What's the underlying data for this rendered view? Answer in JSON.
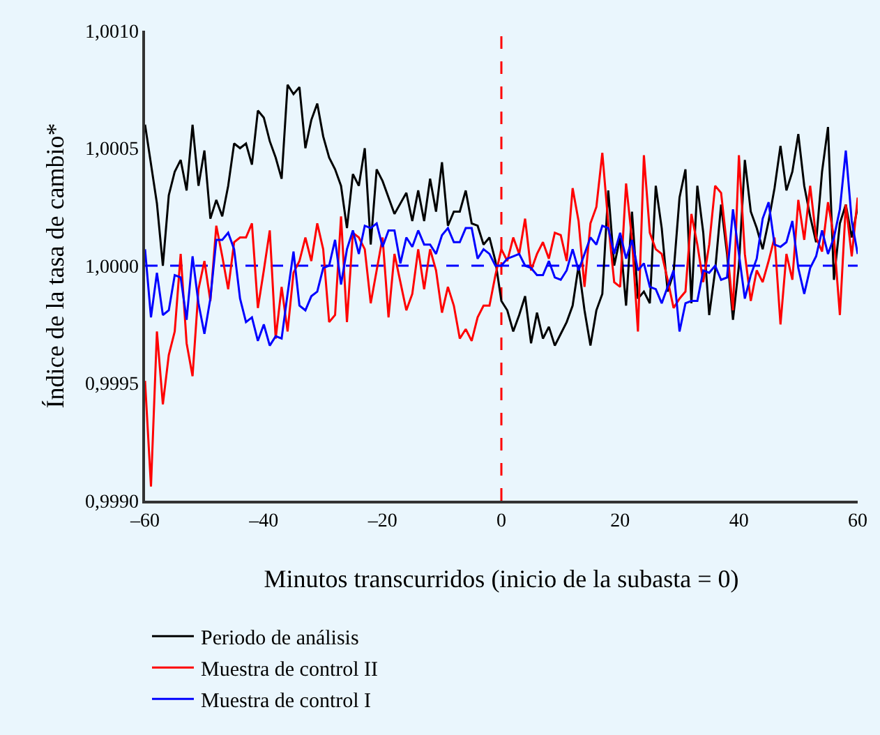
{
  "chart_data": {
    "type": "line",
    "xlabel": "Minutos transcurridos (inicio de la subasta = 0)",
    "ylabel": "Índice de la tasa de cambio*",
    "xlim": [
      -60,
      60
    ],
    "xticks": [
      {
        "value": -60,
        "label": "–60"
      },
      {
        "value": -40,
        "label": "–40"
      },
      {
        "value": -20,
        "label": "–20"
      },
      0,
      20,
      40,
      60
    ],
    "ylim": [
      0.999,
      1.001
    ],
    "yticks": [
      {
        "value": 0.999,
        "label": "0,9990"
      },
      {
        "value": 0.9995,
        "label": "0,9995"
      },
      {
        "value": 1.0,
        "label": "1,0000"
      },
      {
        "value": 1.0005,
        "label": "1,0005"
      },
      {
        "value": 1.001,
        "label": "1,0010"
      }
    ],
    "grid": false,
    "legend": "bottom",
    "marker": "none",
    "line_style": "solid",
    "ref_lines": [
      {
        "axis": "x",
        "value": 0,
        "color": "#ff0000",
        "line_style": "dashed"
      },
      {
        "axis": "y",
        "value": 1.0,
        "color": "#0000ff",
        "line_style": "dashed"
      }
    ],
    "series": [
      {
        "name": "Periodo de análisis",
        "color": "#000000",
        "x": [
          -60,
          -58,
          -57,
          -56,
          -55,
          -54,
          -53,
          -52,
          -51,
          -50,
          -49,
          -48,
          -47,
          -46,
          -45,
          -44,
          -43,
          -42,
          -41,
          -40,
          -39,
          -38,
          -37,
          -36,
          -35,
          -34,
          -33,
          -32,
          -31,
          -30,
          -29,
          -28,
          -27,
          -26,
          -25,
          -24,
          -23,
          -22,
          -21,
          -20,
          -18,
          -16,
          -15,
          -14,
          -13,
          -12,
          -11,
          -10,
          -9,
          -8,
          -7,
          -6,
          -5,
          -4,
          -3,
          -2,
          -1,
          0,
          1,
          2,
          3,
          4,
          5,
          6,
          7,
          8,
          9,
          10,
          11,
          12,
          13,
          14,
          15,
          16,
          17,
          18,
          19,
          20,
          21,
          22,
          23,
          24,
          25,
          26,
          27,
          28,
          29,
          30,
          31,
          32,
          33,
          34,
          35,
          36,
          37,
          38,
          39,
          40,
          41,
          42,
          43,
          44,
          45,
          46,
          47,
          48,
          49,
          50,
          51,
          52,
          53,
          54,
          55,
          56,
          57,
          58,
          59,
          60
        ],
        "values": [
          1.0006,
          1.000265,
          1.0,
          1.0003,
          1.0004,
          1.00045,
          1.00032,
          1.0006,
          1.00034,
          1.00049,
          1.0002,
          1.00028,
          1.00021,
          1.00034,
          1.00052,
          1.0005,
          1.00052,
          1.00043,
          1.00066,
          1.00063,
          1.00053,
          1.00046,
          1.00037,
          1.00077,
          1.00073,
          1.00076,
          1.0005,
          1.00062,
          1.00069,
          1.00055,
          1.00046,
          1.00041,
          1.00034,
          1.00016,
          1.00039,
          1.00034,
          1.0005,
          1.00009,
          1.00041,
          1.00036,
          1.00022,
          1.00031,
          1.00019,
          1.00032,
          1.00019,
          1.00037,
          1.00023,
          1.00044,
          1.00017,
          1.00023,
          1.00023,
          1.00032,
          1.00018,
          1.00017,
          1.00009,
          1.00012,
          1.00002,
          0.99985,
          0.99981,
          0.99972,
          0.99979,
          0.99987,
          0.99967,
          0.9998,
          0.99969,
          0.99974,
          0.99966,
          0.99971,
          0.99976,
          0.99983,
          1.0,
          0.99981,
          0.99966,
          0.99981,
          0.99988,
          1.00032,
          1.0,
          1.00012,
          0.99983,
          1.00023,
          0.99986,
          0.99989,
          0.99984,
          1.00034,
          1.00016,
          0.99989,
          0.99997,
          1.00029,
          1.00041,
          0.99984,
          1.00034,
          1.00014,
          0.99979,
          0.99998,
          1.00026,
          1.00005,
          0.99977,
          1.0,
          1.00045,
          1.00023,
          1.00016,
          1.00007,
          1.00019,
          1.00033,
          1.00051,
          1.00032,
          1.0004,
          1.00056,
          1.00034,
          1.00021,
          1.0001,
          1.0004,
          1.00059,
          0.99994,
          1.00018,
          1.00026,
          1.00012,
          1.00025
        ]
      },
      {
        "name": "Muestra de control II",
        "color": "#ff0000",
        "x": [
          -60,
          -59,
          -58,
          -57,
          -56,
          -55,
          -54,
          -53,
          -52,
          -51,
          -50,
          -49,
          -48,
          -47,
          -46,
          -45,
          -44,
          -43,
          -42,
          -41,
          -40,
          -39,
          -38,
          -37,
          -36,
          -35,
          -34,
          -33,
          -32,
          -31,
          -30,
          -29,
          -28,
          -27,
          -26,
          -25,
          -24,
          -23,
          -22,
          -21,
          -20,
          -19,
          -18,
          -17,
          -16,
          -15,
          -14,
          -13,
          -12,
          -11,
          -10,
          -9,
          -8,
          -7,
          -6,
          -5,
          -4,
          -3,
          -2,
          -1,
          0,
          1,
          2,
          3,
          4,
          5,
          6,
          7,
          8,
          9,
          10,
          11,
          12,
          13,
          14,
          15,
          16,
          17,
          18,
          19,
          20,
          21,
          22,
          23,
          24,
          25,
          26,
          27,
          28,
          29,
          30,
          31,
          32,
          33,
          34,
          35,
          36,
          37,
          38,
          39,
          40,
          41,
          42,
          43,
          44,
          45,
          46,
          47,
          48,
          49,
          50,
          51,
          52,
          53,
          54,
          55,
          56,
          57,
          58,
          59,
          60
        ],
        "values": [
          0.99951,
          0.99906,
          0.99972,
          0.99941,
          0.99962,
          0.99972,
          1.00005,
          0.99967,
          0.99953,
          0.9999,
          1.00002,
          0.99985,
          1.00017,
          1.00004,
          0.9999,
          1.0001,
          1.00012,
          1.00012,
          1.00018,
          0.99982,
          0.99998,
          1.00015,
          0.99969,
          0.99991,
          0.99972,
          0.99997,
          1.00002,
          1.00012,
          1.00002,
          1.00018,
          1.00007,
          0.99976,
          0.99979,
          1.00021,
          0.99976,
          1.00014,
          1.00012,
          1.00007,
          0.99984,
          0.99998,
          1.00012,
          0.99978,
          1.00005,
          0.99993,
          0.99981,
          0.99988,
          1.00007,
          0.9999,
          1.00007,
          0.99998,
          0.9998,
          0.99991,
          0.99983,
          0.99969,
          0.99973,
          0.99968,
          0.99978,
          0.99983,
          0.99983,
          0.99996,
          1.00007,
          1.00002,
          1.00012,
          1.00005,
          1.0002,
          0.99998,
          1.00005,
          1.0001,
          1.00003,
          1.00014,
          1.00013,
          1.00002,
          1.00033,
          1.00019,
          0.99991,
          1.00018,
          1.00025,
          1.00048,
          1.00018,
          0.99993,
          0.99991,
          1.00035,
          1.00011,
          0.99972,
          1.00047,
          1.00014,
          1.00007,
          1.00005,
          0.99994,
          0.99982,
          0.99986,
          0.99989,
          1.00022,
          1.00009,
          0.99993,
          1.00009,
          1.00034,
          1.00031,
          1.00008,
          0.99981,
          1.00047,
          1.00005,
          0.99985,
          0.99998,
          0.99993,
          1.00002,
          1.00012,
          0.99975,
          1.00005,
          0.99994,
          1.00028,
          1.00011,
          1.00034,
          1.00012,
          1.00006,
          1.00027,
          1.00012,
          0.99979,
          1.00026,
          1.00004,
          1.00029
        ]
      },
      {
        "name": "Muestra de control I",
        "color": "#0000ff",
        "x": [
          -60,
          -59,
          -58,
          -57,
          -56,
          -55,
          -54,
          -53,
          -52,
          -51,
          -50,
          -49,
          -48,
          -47,
          -46,
          -45,
          -44,
          -43,
          -42,
          -41,
          -40,
          -39,
          -38,
          -37,
          -36,
          -35,
          -34,
          -33,
          -32,
          -31,
          -30,
          -29,
          -28,
          -27,
          -26,
          -25,
          -24,
          -23,
          -22,
          -21,
          -20,
          -19,
          -18,
          -17,
          -16,
          -15,
          -14,
          -13,
          -12,
          -11,
          -10,
          -9,
          -8,
          -7,
          -6,
          -5,
          -4,
          -3,
          -2,
          -1,
          0,
          1,
          2,
          3,
          4,
          5,
          6,
          7,
          8,
          9,
          10,
          11,
          12,
          13,
          14,
          15,
          16,
          17,
          18,
          19,
          20,
          21,
          22,
          23,
          24,
          25,
          26,
          27,
          28,
          29,
          30,
          31,
          32,
          33,
          34,
          35,
          36,
          37,
          38,
          39,
          40,
          41,
          42,
          43,
          44,
          45,
          46,
          47,
          48,
          49,
          50,
          51,
          52,
          53,
          54,
          55,
          56,
          57,
          58,
          59,
          60
        ],
        "values": [
          1.00007,
          0.99978,
          0.99997,
          0.99979,
          0.99981,
          0.99996,
          0.99995,
          0.99977,
          1.00004,
          0.99984,
          0.99971,
          0.99986,
          1.00011,
          1.00011,
          1.00014,
          1.00007,
          0.99986,
          0.99976,
          0.99978,
          0.99968,
          0.99975,
          0.99966,
          0.9997,
          0.99969,
          0.99988,
          1.00006,
          0.99983,
          0.99981,
          0.99987,
          0.99989,
          0.99999,
          1.0,
          1.00011,
          0.99992,
          1.00007,
          1.00015,
          1.00005,
          1.00017,
          1.00016,
          1.00018,
          1.00008,
          1.00015,
          1.00015,
          1.00001,
          1.00012,
          1.00008,
          1.00015,
          1.00009,
          1.00009,
          1.00005,
          1.00013,
          1.00016,
          1.0001,
          1.0001,
          1.00016,
          1.00016,
          1.00003,
          1.00007,
          1.00005,
          1.0,
          1.0,
          1.00003,
          1.00004,
          1.00005,
          1.0,
          0.99999,
          0.99996,
          0.99996,
          1.00002,
          0.99995,
          0.99994,
          0.99998,
          1.00007,
          0.99998,
          1.00005,
          1.00012,
          1.00009,
          1.00017,
          1.00016,
          1.00005,
          1.00014,
          1.00003,
          1.00011,
          0.99998,
          1.00001,
          0.99991,
          0.9999,
          0.99984,
          0.99991,
          0.99998,
          0.99972,
          0.99984,
          0.99985,
          0.99985,
          0.99998,
          0.99997,
          1.0,
          0.99994,
          0.99995,
          1.00024,
          1.00005,
          0.99986,
          0.99996,
          1.00003,
          1.0002,
          1.00027,
          1.00009,
          1.00008,
          1.0001,
          1.00019,
          0.99999,
          0.99988,
          0.99999,
          1.00004,
          1.00015,
          1.00005,
          1.00012,
          1.00024,
          1.00049,
          1.00019,
          1.00005
        ]
      }
    ]
  }
}
